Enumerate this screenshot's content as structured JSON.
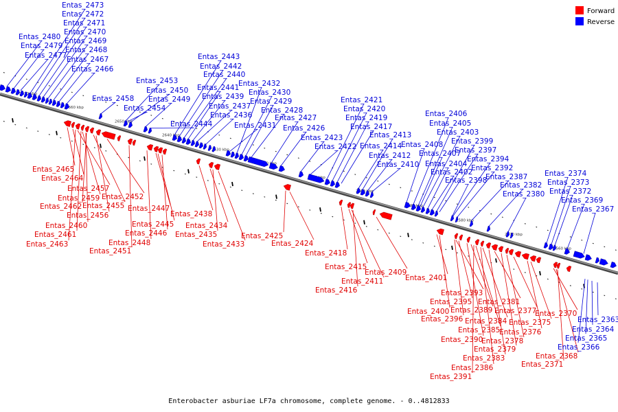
{
  "legend": {
    "forward": "Forward",
    "reverse": "Reverse"
  },
  "colors": {
    "forward": "#ff0000",
    "reverse": "#0000ff",
    "forward_text": "#e00000",
    "reverse_text": "#0000d8",
    "backbone": "#7a7a7a"
  },
  "caption": "Enterobacter asburiae LF7a chromosome, complete genome. - 0..4812833",
  "scale_ticks": [
    "2670 kbp",
    "2660 kbp",
    "2650 kbp",
    "2640 kbp",
    "2630 kbp",
    "2620 kbp",
    "2610 kbp",
    "2600 kbp",
    "2590 kbp",
    "2580 kbp",
    "2570 kbp",
    "2560 kbp"
  ],
  "reverse_labels": [
    "Entas_2480",
    "Entas_2479",
    "Entas_2477",
    "Entas_2473",
    "Entas_2472",
    "Entas_2471",
    "Entas_2470",
    "Entas_2469",
    "Entas_2468",
    "Entas_2467",
    "Entas_2466",
    "Entas_2458",
    "Entas_2453",
    "Entas_2450",
    "Entas_2449",
    "Entas_2454",
    "Entas_2444",
    "Entas_2443",
    "Entas_2442",
    "Entas_2440",
    "Entas_2441",
    "Entas_2439",
    "Entas_2437",
    "Entas_2436",
    "Entas_2432",
    "Entas_2430",
    "Entas_2429",
    "Entas_2428",
    "Entas_2431",
    "Entas_2427",
    "Entas_2426",
    "Entas_2423",
    "Entas_2422",
    "Entas_2421",
    "Entas_2420",
    "Entas_2419",
    "Entas_2417",
    "Entas_2413",
    "Entas_2414",
    "Entas_2412",
    "Entas_2410",
    "Entas_2408",
    "Entas_2406",
    "Entas_2405",
    "Entas_2403",
    "Entas_2407",
    "Entas_2404",
    "Entas_2402",
    "Entas_2399",
    "Entas_2397",
    "Entas_2394",
    "Entas_2392",
    "Entas_2398",
    "Entas_2387",
    "Entas_2382",
    "Entas_2380",
    "Entas_2374",
    "Entas_2373",
    "Entas_2372",
    "Entas_2369",
    "Entas_2367",
    "Entas_2363",
    "Entas_2364",
    "Entas_2365",
    "Entas_2366"
  ],
  "forward_labels": [
    "Entas_2465",
    "Entas_2464",
    "Entas_2457",
    "Entas_2459",
    "Entas_2462",
    "Entas_2455",
    "Entas_2456",
    "Entas_2460",
    "Entas_2461",
    "Entas_2463",
    "Entas_2452",
    "Entas_2447",
    "Entas_2445",
    "Entas_2446",
    "Entas_2448",
    "Entas_2451",
    "Entas_2438",
    "Entas_2434",
    "Entas_2435",
    "Entas_2433",
    "Entas_2425",
    "Entas_2424",
    "Entas_2418",
    "Entas_2415",
    "Entas_2409",
    "Entas_2411",
    "Entas_2416",
    "Entas_2401",
    "Entas_2393",
    "Entas_2395",
    "Entas_2400",
    "Entas_2396",
    "Entas_2389",
    "Entas_2381",
    "Entas_2384",
    "Entas_2377",
    "Entas_2385",
    "Entas_2390",
    "Entas_2378",
    "Entas_2379",
    "Entas_2383",
    "Entas_2386",
    "Entas_2391",
    "Entas_2376",
    "Entas_2375",
    "Entas_2370",
    "Entas_2368",
    "Entas_2371"
  ]
}
